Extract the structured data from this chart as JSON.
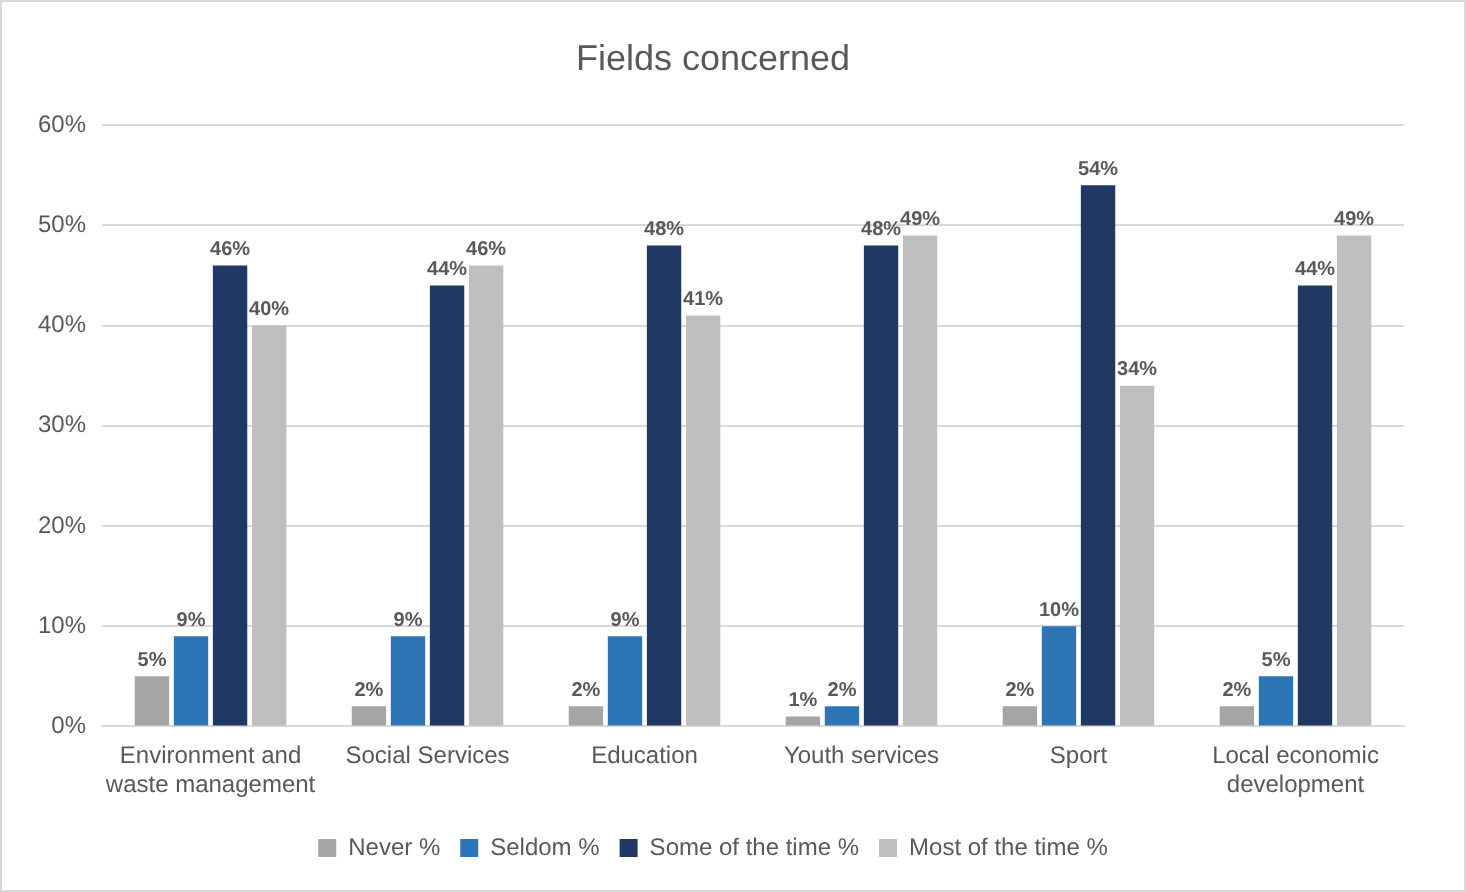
{
  "chart_data": {
    "type": "bar",
    "title": "Fields concerned",
    "categories": [
      "Environment and waste management",
      "Social Services",
      "Education",
      "Youth services",
      "Sport",
      "Local economic development"
    ],
    "series": [
      {
        "name": "Never %",
        "color": "#a5a5a5",
        "values": [
          5,
          2,
          2,
          1,
          2,
          2
        ],
        "value_labels": [
          "5%",
          "2%",
          "2%",
          "1%",
          "2%",
          "2%"
        ]
      },
      {
        "name": "Seldom %",
        "color": "#2e75b6",
        "values": [
          9,
          9,
          9,
          2,
          10,
          5
        ],
        "value_labels": [
          "9%",
          "9%",
          "9%",
          "2%",
          "10%",
          "5%"
        ]
      },
      {
        "name": "Some of the time %",
        "color": "#1f3864",
        "values": [
          46,
          44,
          48,
          48,
          54,
          44
        ],
        "value_labels": [
          "46%",
          "44%",
          "48%",
          "48%",
          "54%",
          "44%"
        ]
      },
      {
        "name": "Most of the time %",
        "color": "#bfbfbf",
        "values": [
          40,
          46,
          41,
          49,
          34,
          49
        ],
        "value_labels": [
          "40%",
          "46%",
          "41%",
          "49%",
          "34%",
          "49%"
        ]
      }
    ],
    "ylim": [
      0,
      60
    ],
    "yticks": [
      {
        "value": 0,
        "label": "0%"
      },
      {
        "value": 10,
        "label": "10%"
      },
      {
        "value": 20,
        "label": "20%"
      },
      {
        "value": 30,
        "label": "30%"
      },
      {
        "value": 40,
        "label": "40%"
      },
      {
        "value": 50,
        "label": "50%"
      },
      {
        "value": 60,
        "label": "60%"
      }
    ],
    "grid": "y",
    "legend": "bottom"
  }
}
